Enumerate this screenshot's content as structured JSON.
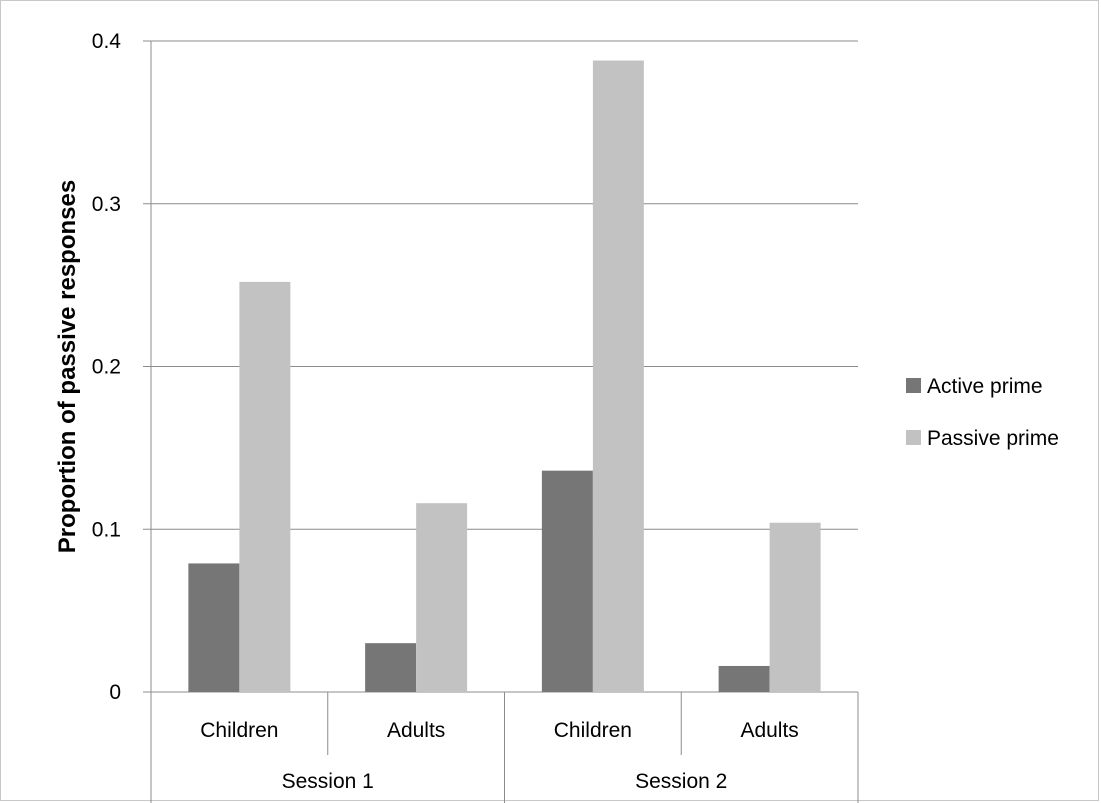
{
  "chart_data": {
    "type": "bar",
    "ylabel": "Proportion of passive responses",
    "ylim": [
      0,
      0.4
    ],
    "yticks": [
      0,
      0.1,
      0.2,
      0.3,
      0.4
    ],
    "ytick_labels": [
      "0",
      "0.1",
      "0.2",
      "0.3",
      "0.4"
    ],
    "grid": true,
    "legend_position": "right",
    "groups": [
      {
        "label": "Session 1",
        "categories": [
          "Children",
          "Adults"
        ]
      },
      {
        "label": "Session 2",
        "categories": [
          "Children",
          "Adults"
        ]
      }
    ],
    "categories": [
      "Children",
      "Adults",
      "Children",
      "Adults"
    ],
    "series": [
      {
        "name": "Active prime",
        "color": "#767676",
        "values": [
          0.079,
          0.03,
          0.136,
          0.016
        ]
      },
      {
        "name": "Passive prime",
        "color": "#c2c2c2",
        "values": [
          0.252,
          0.116,
          0.388,
          0.104
        ]
      }
    ]
  }
}
